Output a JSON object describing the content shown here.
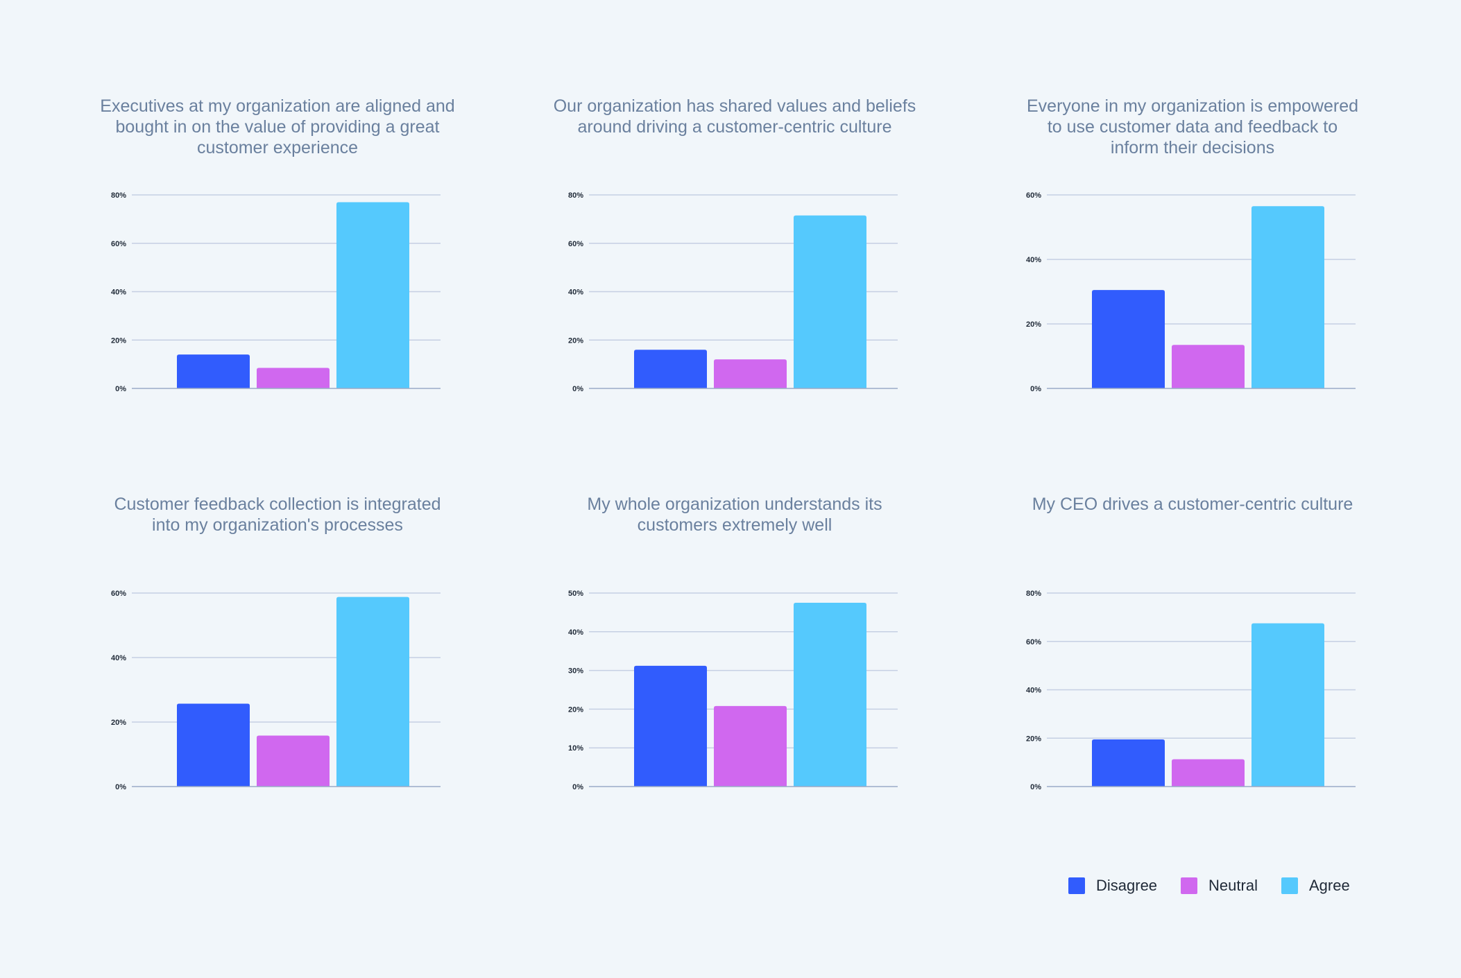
{
  "chart_data": [
    {
      "type": "bar",
      "title": "Executives at my organization are aligned and\nbought in on the value of providing a great\ncustomer experience",
      "categories": [
        "Disagree",
        "Neutral",
        "Agree"
      ],
      "values": [
        14,
        8.5,
        77
      ],
      "ylim": [
        0,
        80
      ],
      "ticks": [
        0,
        20,
        40,
        60,
        80
      ],
      "tick_labels": [
        "0%",
        "20%",
        "40%",
        "60%",
        "80%"
      ],
      "xlabel": "",
      "ylabel": ""
    },
    {
      "type": "bar",
      "title": "Our organization has shared values and beliefs\naround driving a customer-centric culture",
      "categories": [
        "Disagree",
        "Neutral",
        "Agree"
      ],
      "values": [
        16,
        12,
        71.5
      ],
      "ylim": [
        0,
        80
      ],
      "ticks": [
        0,
        20,
        40,
        60,
        80
      ],
      "tick_labels": [
        "0%",
        "20%",
        "40%",
        "60%",
        "80%"
      ],
      "xlabel": "",
      "ylabel": ""
    },
    {
      "type": "bar",
      "title": "Everyone in my organization is empowered\nto use customer data and feedback to\ninform their decisions",
      "categories": [
        "Disagree",
        "Neutral",
        "Agree"
      ],
      "values": [
        30.5,
        13.5,
        56.5
      ],
      "ylim": [
        0,
        60
      ],
      "ticks": [
        0,
        20,
        40,
        60
      ],
      "tick_labels": [
        "0%",
        "20%",
        "40%",
        "60%"
      ],
      "xlabel": "",
      "ylabel": ""
    },
    {
      "type": "bar",
      "title": "Customer feedback collection is integrated\ninto my organization's processes",
      "categories": [
        "Disagree",
        "Neutral",
        "Agree"
      ],
      "values": [
        25.7,
        15.8,
        58.8
      ],
      "ylim": [
        0,
        60
      ],
      "ticks": [
        0,
        20,
        40,
        60
      ],
      "tick_labels": [
        "0%",
        "20%",
        "40%",
        "60%"
      ],
      "xlabel": "",
      "ylabel": ""
    },
    {
      "type": "bar",
      "title": "My whole organization understands its\ncustomers extremely well",
      "categories": [
        "Disagree",
        "Neutral",
        "Agree"
      ],
      "values": [
        31.2,
        20.8,
        47.5
      ],
      "ylim": [
        0,
        50
      ],
      "ticks": [
        0,
        10,
        20,
        30,
        40,
        50
      ],
      "tick_labels": [
        "0%",
        "10%",
        "20%",
        "30%",
        "40%",
        "50%"
      ],
      "xlabel": "",
      "ylabel": ""
    },
    {
      "type": "bar",
      "title": "My CEO drives a customer-centric culture",
      "categories": [
        "Disagree",
        "Neutral",
        "Agree"
      ],
      "values": [
        19.5,
        11.3,
        67.5
      ],
      "ylim": [
        0,
        80
      ],
      "ticks": [
        0,
        20,
        40,
        60,
        80
      ],
      "tick_labels": [
        "0%",
        "20%",
        "40%",
        "60%",
        "80%"
      ],
      "xlabel": "",
      "ylabel": ""
    }
  ],
  "legend": {
    "items": [
      {
        "label": "Disagree",
        "color": "#315cfd"
      },
      {
        "label": "Neutral",
        "color": "#d068ef"
      },
      {
        "label": "Agree",
        "color": "#55c9fd"
      }
    ]
  },
  "colors": {
    "background": "#f1f6fa",
    "title": "#6a809e",
    "gridline": "#c5cfe3",
    "axis": "#9aaac8"
  }
}
